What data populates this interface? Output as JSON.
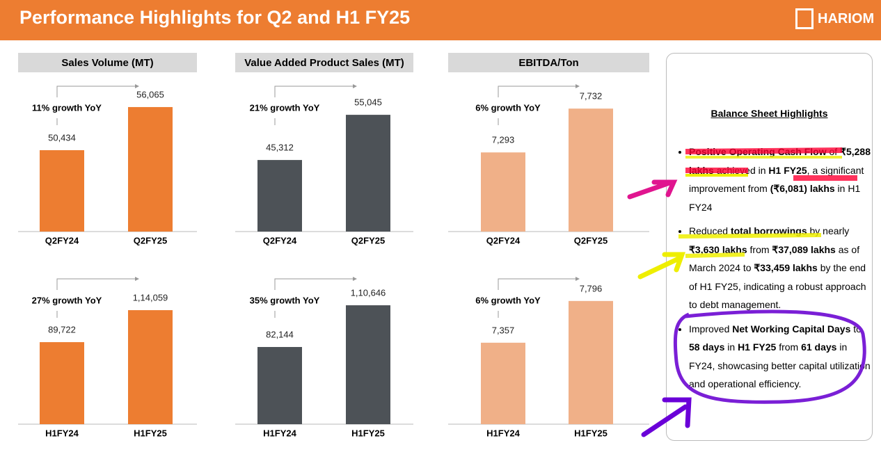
{
  "header": {
    "title": "Performance Highlights for Q2 and H1 FY25",
    "logo": "HARIOM"
  },
  "chart_data": [
    {
      "type": "bar",
      "title": "Sales Volume (MT)",
      "categories": [
        "Q2FY24",
        "Q2FY25"
      ],
      "values": [
        50434,
        56065
      ],
      "value_labels": [
        "50,434",
        "56,065"
      ],
      "ylim": [
        39800,
        59150
      ],
      "color": "#ED7D31",
      "annotation": "11% growth YoY"
    },
    {
      "type": "bar",
      "title": "Value Added Product Sales (MT)",
      "categories": [
        "Q2FY24",
        "Q2FY25"
      ],
      "values": [
        45312,
        55045
      ],
      "value_labels": [
        "45,312",
        "55,045"
      ],
      "ylim": [
        29900,
        61800
      ],
      "color": "#4D5257",
      "annotation": "21% growth YoY"
    },
    {
      "type": "bar",
      "title": "EBITDA/Ton",
      "categories": [
        "Q2FY24",
        "Q2FY25"
      ],
      "values": [
        7293,
        7732
      ],
      "value_labels": [
        "7,293",
        "7,732"
      ],
      "ylim": [
        6500,
        7984
      ],
      "color": "#F0B088",
      "annotation": "6% growth YoY"
    },
    {
      "type": "bar",
      "categories": [
        "H1FY24",
        "H1FY25"
      ],
      "values": [
        89722,
        114059
      ],
      "value_labels": [
        "89,722",
        "1,14,059"
      ],
      "ylim": [
        27300,
        140000
      ],
      "color": "#ED7D31",
      "annotation": "27% growth YoY"
    },
    {
      "type": "bar",
      "categories": [
        "H1FY24",
        "H1FY25"
      ],
      "values": [
        82144,
        110646
      ],
      "value_labels": [
        "82,144",
        "1,10,646"
      ],
      "ylim": [
        29400,
        130600
      ],
      "color": "#4D5257",
      "annotation": "35% growth YoY"
    },
    {
      "type": "bar",
      "categories": [
        "H1FY24",
        "H1FY25"
      ],
      "values": [
        7357,
        7796
      ],
      "value_labels": [
        "7,357",
        "7,796"
      ],
      "ylim": [
        6500,
        8058
      ],
      "color": "#F0B088",
      "annotation": "6% growth YoY"
    }
  ],
  "panel": {
    "title": "Balance Sheet Highlights",
    "bullets": [
      [
        {
          "text": "Positive Operating Cash Flow",
          "bold": true
        },
        {
          "text": " of "
        },
        {
          "text": "₹5,288 lakhs",
          "bold": true
        },
        {
          "text": " achieved in "
        },
        {
          "text": "H1 FY25",
          "bold": true
        },
        {
          "text": ", a significant improvement from "
        },
        {
          "text": "(₹6,081) lakhs",
          "bold": true
        },
        {
          "text": " in H1 FY24"
        }
      ],
      [
        {
          "text": "Reduced "
        },
        {
          "text": "total borrowings",
          "bold": true
        },
        {
          "text": " by nearly "
        },
        {
          "text": "₹3,630 lakhs",
          "bold": true
        },
        {
          "text": " from "
        },
        {
          "text": "₹37,089 lakhs",
          "bold": true
        },
        {
          "text": " as of March 2024 to "
        },
        {
          "text": "₹33,459 lakhs",
          "bold": true
        },
        {
          "text": " by the end of H1 FY25, indicating a robust approach to debt management."
        }
      ],
      [
        {
          "text": "Improved "
        },
        {
          "text": "Net Working Capital Days",
          "bold": true
        },
        {
          "text": " to "
        },
        {
          "text": "58 days",
          "bold": true
        },
        {
          "text": " in "
        },
        {
          "text": "H1 FY25",
          "bold": true
        },
        {
          "text": " from "
        },
        {
          "text": "61 days",
          "bold": true
        },
        {
          "text": " in FY24, showcasing better capital utilization and operational efficiency."
        }
      ]
    ]
  }
}
